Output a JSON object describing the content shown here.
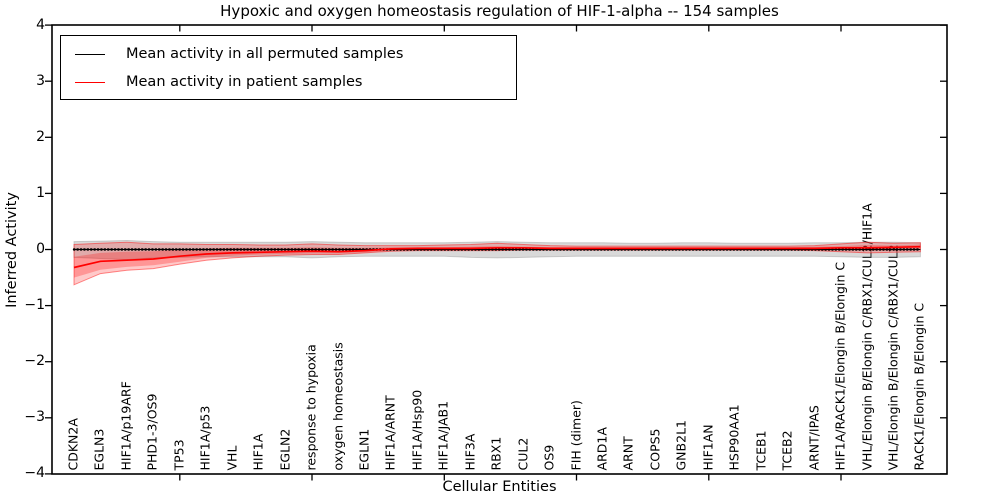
{
  "chart_data": {
    "type": "line",
    "title": "Hypoxic and oxygen homeostasis regulation of HIF-1-alpha -- 154 samples",
    "xlabel": "Cellular Entities",
    "ylabel": "Inferred Activity",
    "ylim": [
      -4,
      4
    ],
    "yticks": [
      4,
      3,
      2,
      1,
      0,
      -1,
      -2,
      -3,
      -4
    ],
    "grid": false,
    "legend_position": "upper left",
    "major_xtick_indices": [
      4,
      9,
      14,
      19,
      24,
      29
    ],
    "categories": [
      "CDKN2A",
      "EGLN3",
      "HIF1A/p19ARF",
      "PHD1-3/OS9",
      "TP53",
      "HIF1A/p53",
      "VHL",
      "HIF1A",
      "EGLN2",
      "response to hypoxia",
      "oxygen homeostasis",
      "EGLN1",
      "HIF1A/ARNT",
      "HIF1A/Hsp90",
      "HIF1A/JAB1",
      "HIF3A",
      "RBX1",
      "CUL2",
      "OS9",
      "FIH (dimer)",
      "ARD1A",
      "ARNT",
      "COPS5",
      "GNB2L1",
      "HIF1AN",
      "HSP90AA1",
      "TCEB1",
      "TCEB2",
      "ARNT/IPAS",
      "HIF1A/RACK1/Elongin B/Elongin C",
      "VHL/Elongin B/Elongin C/RBX1/CUL2/HIF1A",
      "VHL/Elongin B/Elongin C/RBX1/CUL2",
      "RACK1/Elongin B/Elongin C"
    ],
    "series": [
      {
        "name": "Mean activity in all permuted samples",
        "color": "#000000",
        "band_color": "#808080",
        "values": [
          0,
          0,
          0,
          0,
          0,
          0,
          0,
          0,
          0,
          0,
          0,
          0,
          0,
          0,
          0,
          0,
          0,
          0,
          0,
          0,
          0,
          0,
          0,
          0,
          0,
          0,
          0,
          0,
          0,
          0,
          0,
          0,
          0
        ],
        "band_upper": [
          0.14,
          0.15,
          0.16,
          0.14,
          0.13,
          0.13,
          0.13,
          0.13,
          0.13,
          0.14,
          0.13,
          0.12,
          0.12,
          0.12,
          0.12,
          0.13,
          0.14,
          0.13,
          0.12,
          0.12,
          0.12,
          0.11,
          0.11,
          0.12,
          0.12,
          0.11,
          0.11,
          0.11,
          0.12,
          0.12,
          0.13,
          0.13,
          0.12
        ],
        "band_lower": [
          -0.14,
          -0.16,
          -0.18,
          -0.15,
          -0.14,
          -0.13,
          -0.13,
          -0.13,
          -0.13,
          -0.15,
          -0.13,
          -0.12,
          -0.12,
          -0.12,
          -0.12,
          -0.14,
          -0.15,
          -0.14,
          -0.13,
          -0.12,
          -0.12,
          -0.12,
          -0.12,
          -0.12,
          -0.12,
          -0.12,
          -0.12,
          -0.12,
          -0.12,
          -0.13,
          -0.14,
          -0.14,
          -0.13
        ]
      },
      {
        "name": "Mean activity in patient samples",
        "color": "#ff0000",
        "band_color": "#ff0000",
        "values": [
          -0.32,
          -0.21,
          -0.19,
          -0.17,
          -0.12,
          -0.08,
          -0.06,
          -0.05,
          -0.04,
          -0.03,
          -0.04,
          -0.02,
          0.01,
          0.02,
          0.02,
          0.02,
          0.03,
          0.03,
          0.02,
          0.02,
          0.02,
          0.02,
          0.02,
          0.02,
          0.02,
          0.02,
          0.02,
          0.02,
          0.02,
          0.03,
          0.03,
          0.04,
          0.05
        ],
        "band_outer_upper": [
          0.09,
          0.11,
          0.13,
          0.1,
          0.1,
          0.09,
          0.09,
          0.08,
          0.08,
          0.1,
          0.08,
          0.07,
          0.07,
          0.07,
          0.08,
          0.09,
          0.11,
          0.09,
          0.07,
          0.06,
          0.06,
          0.06,
          0.06,
          0.06,
          0.06,
          0.06,
          0.06,
          0.06,
          0.07,
          0.1,
          0.13,
          0.11,
          0.12
        ],
        "band_outer_lower": [
          -0.63,
          -0.43,
          -0.37,
          -0.34,
          -0.26,
          -0.19,
          -0.15,
          -0.12,
          -0.1,
          -0.09,
          -0.09,
          -0.06,
          -0.03,
          -0.02,
          -0.02,
          -0.02,
          -0.02,
          -0.01,
          -0.01,
          -0.01,
          -0.01,
          -0.01,
          -0.01,
          -0.01,
          -0.01,
          -0.01,
          -0.01,
          -0.01,
          -0.02,
          -0.04,
          -0.06,
          -0.05,
          -0.04
        ],
        "band_inner_upper": [
          -0.13,
          -0.06,
          -0.04,
          -0.03,
          0.0,
          0.02,
          0.03,
          0.03,
          0.03,
          0.04,
          0.03,
          0.03,
          0.04,
          0.04,
          0.04,
          0.05,
          0.06,
          0.05,
          0.04,
          0.04,
          0.04,
          0.04,
          0.04,
          0.04,
          0.04,
          0.04,
          0.04,
          0.04,
          0.05,
          0.06,
          0.08,
          0.07,
          0.09
        ],
        "band_inner_lower": [
          -0.5,
          -0.36,
          -0.31,
          -0.28,
          -0.22,
          -0.15,
          -0.11,
          -0.09,
          -0.08,
          -0.07,
          -0.07,
          -0.05,
          -0.02,
          -0.01,
          -0.01,
          -0.01,
          -0.01,
          0.0,
          0.0,
          0.0,
          0.0,
          0.0,
          0.0,
          0.0,
          0.0,
          0.0,
          0.0,
          0.0,
          -0.01,
          -0.01,
          -0.02,
          -0.02,
          -0.01
        ]
      }
    ]
  }
}
